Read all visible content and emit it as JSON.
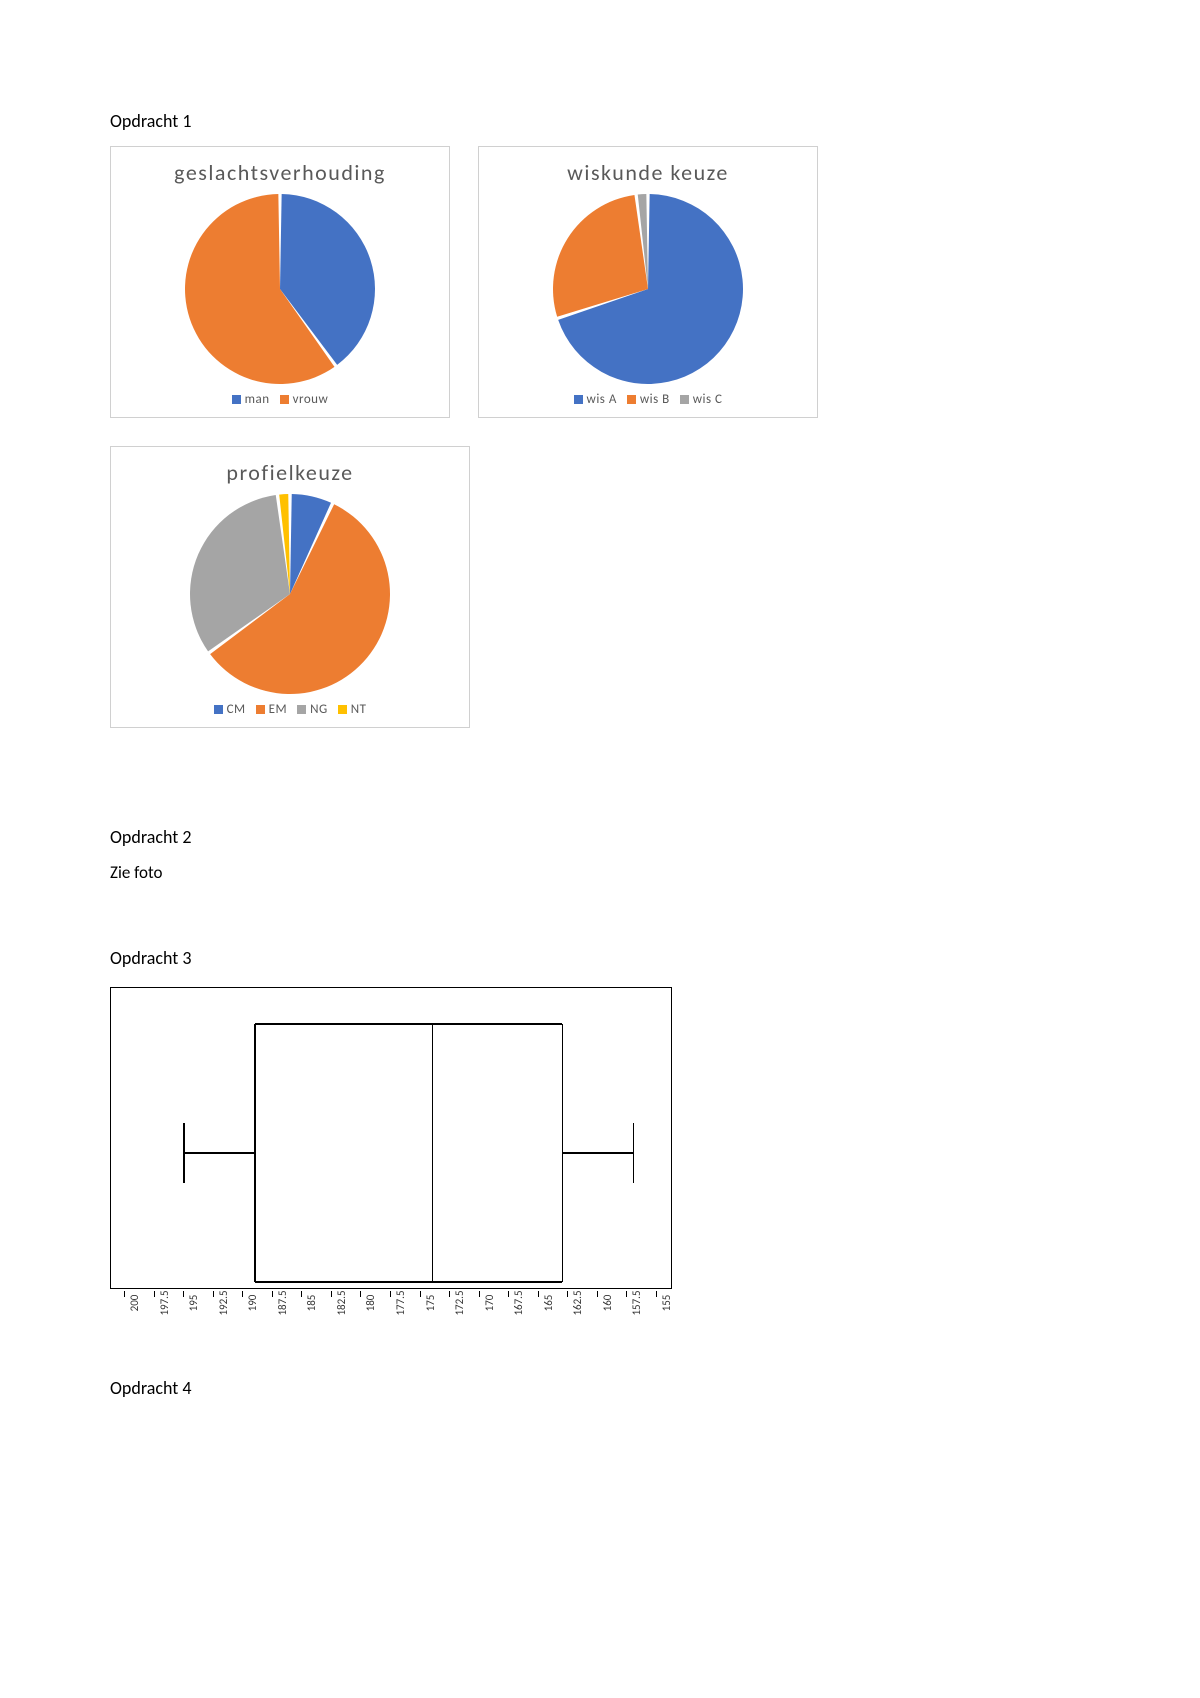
{
  "headings": {
    "opdracht1": "Opdracht 1",
    "opdracht2": "Opdracht 2",
    "zieFoto": "Zie foto",
    "opdracht3": "Opdracht 3",
    "opdracht4": "Opdracht 4"
  },
  "colors": {
    "blue": "#4472c4",
    "orange": "#ed7d31",
    "gray": "#a5a5a5",
    "yellow": "#ffc000",
    "border": "#d0d0d0",
    "titleText": "#595959"
  },
  "chart1": {
    "type": "pie",
    "title": "geslachtsverhouding",
    "slices": [
      {
        "label": "man",
        "value": 40,
        "color": "#4472c4"
      },
      {
        "label": "vrouw",
        "value": 60,
        "color": "#ed7d31"
      }
    ],
    "gap_deg": 2,
    "diameter": 190
  },
  "chart2": {
    "type": "pie",
    "title": "wiskunde keuze",
    "slices": [
      {
        "label": "wis A",
        "value": 70,
        "color": "#4472c4"
      },
      {
        "label": "wis B",
        "value": 28,
        "color": "#ed7d31"
      },
      {
        "label": "wis C",
        "value": 2,
        "color": "#a5a5a5"
      }
    ],
    "gap_deg": 2,
    "diameter": 190
  },
  "chart3": {
    "type": "pie",
    "title": "profielkeuze",
    "slices": [
      {
        "label": "CM",
        "value": 7,
        "color": "#4472c4"
      },
      {
        "label": "EM",
        "value": 58,
        "color": "#ed7d31"
      },
      {
        "label": "NG",
        "value": 33,
        "color": "#a5a5a5"
      },
      {
        "label": "NT",
        "value": 2,
        "color": "#ffc000"
      }
    ],
    "gap_deg": 2,
    "diameter": 200
  },
  "boxplot": {
    "type": "boxplot",
    "axis_min": 155,
    "axis_max": 200,
    "tick_step": 2.5,
    "ticks": [
      200,
      197.5,
      195,
      192.5,
      190,
      187.5,
      185,
      182.5,
      180,
      177.5,
      175,
      172.5,
      170,
      167.5,
      165,
      162.5,
      160,
      157.5,
      155
    ],
    "whisker_low": 195,
    "q1": 189,
    "median": 174,
    "q3": 163,
    "whisker_high": 157,
    "container_w": 560,
    "container_h": 300,
    "box_color": "#000000",
    "line_width": 1.5,
    "note": "axis runs high-to-low left-to-right as in image"
  }
}
